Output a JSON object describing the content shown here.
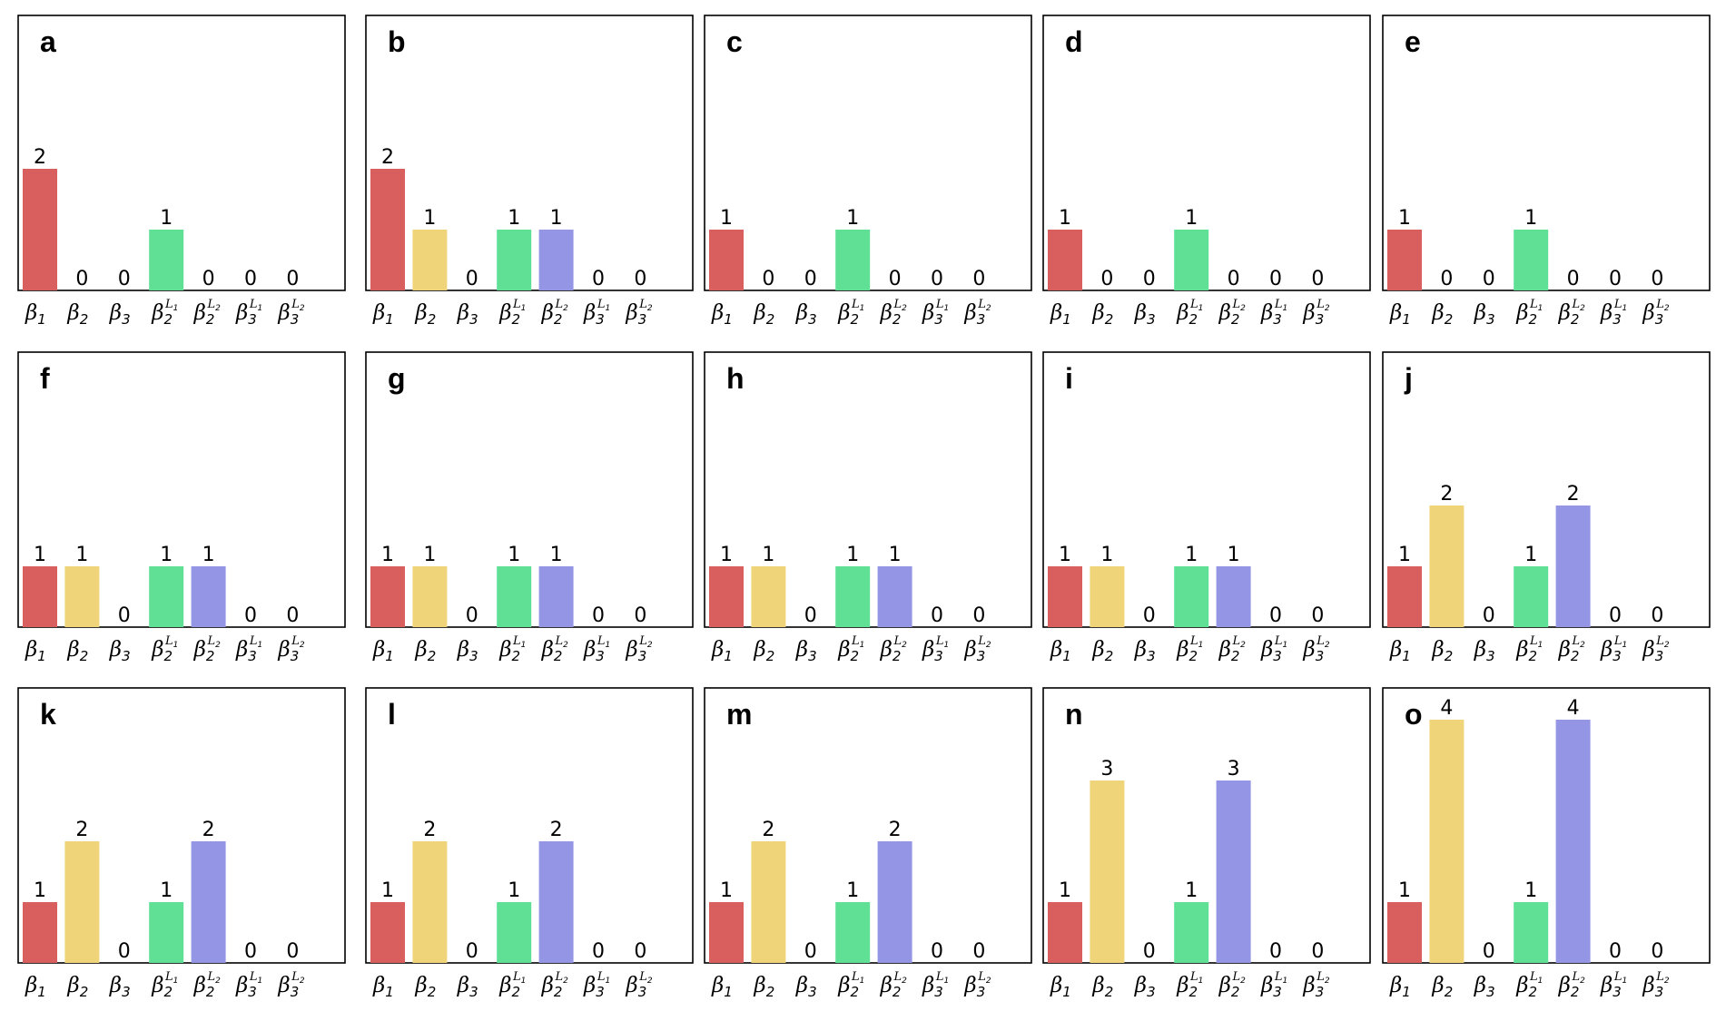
{
  "colors": {
    "beta1": "#d95f5f",
    "beta2": "#efd47a",
    "beta3": "#9fa3e0",
    "beta2_L1": "#5fe095",
    "beta2_L2": "#9595e5",
    "beta3_L1": "#9fa3e0",
    "beta3_L2": "#9fa3e0"
  },
  "chart_data": {
    "type": "bar",
    "categories": [
      {
        "key": "beta1",
        "base": "β",
        "sub": "1",
        "sup_base": "",
        "sup_sub": ""
      },
      {
        "key": "beta2",
        "base": "β",
        "sub": "2",
        "sup_base": "",
        "sup_sub": ""
      },
      {
        "key": "beta3",
        "base": "β",
        "sub": "3",
        "sup_base": "",
        "sup_sub": ""
      },
      {
        "key": "beta2_L1",
        "base": "β",
        "sub": "2",
        "sup_base": "L",
        "sup_sub": "1"
      },
      {
        "key": "beta2_L2",
        "base": "β",
        "sub": "2",
        "sup_base": "L",
        "sup_sub": "2"
      },
      {
        "key": "beta3_L1",
        "base": "β",
        "sub": "3",
        "sup_base": "L",
        "sup_sub": "1"
      },
      {
        "key": "beta3_L2",
        "base": "β",
        "sub": "3",
        "sup_base": "L",
        "sup_sub": "2"
      }
    ],
    "ylim": [
      0,
      4
    ],
    "panels": [
      {
        "label": "a",
        "values": [
          2,
          0,
          0,
          1,
          0,
          0,
          0
        ]
      },
      {
        "label": "b",
        "values": [
          2,
          1,
          0,
          1,
          1,
          0,
          0
        ]
      },
      {
        "label": "c",
        "values": [
          1,
          0,
          0,
          1,
          0,
          0,
          0
        ]
      },
      {
        "label": "d",
        "values": [
          1,
          0,
          0,
          1,
          0,
          0,
          0
        ]
      },
      {
        "label": "e",
        "values": [
          1,
          0,
          0,
          1,
          0,
          0,
          0
        ]
      },
      {
        "label": "f",
        "values": [
          1,
          1,
          0,
          1,
          1,
          0,
          0
        ]
      },
      {
        "label": "g",
        "values": [
          1,
          1,
          0,
          1,
          1,
          0,
          0
        ]
      },
      {
        "label": "h",
        "values": [
          1,
          1,
          0,
          1,
          1,
          0,
          0
        ]
      },
      {
        "label": "i",
        "values": [
          1,
          1,
          0,
          1,
          1,
          0,
          0
        ]
      },
      {
        "label": "j",
        "values": [
          1,
          2,
          0,
          1,
          2,
          0,
          0
        ]
      },
      {
        "label": "k",
        "values": [
          1,
          2,
          0,
          1,
          2,
          0,
          0
        ]
      },
      {
        "label": "l",
        "values": [
          1,
          2,
          0,
          1,
          2,
          0,
          0
        ]
      },
      {
        "label": "m",
        "values": [
          1,
          2,
          0,
          1,
          2,
          0,
          0
        ]
      },
      {
        "label": "n",
        "values": [
          1,
          3,
          0,
          1,
          3,
          0,
          0
        ]
      },
      {
        "label": "o",
        "values": [
          1,
          4,
          0,
          1,
          4,
          0,
          0
        ]
      }
    ]
  }
}
